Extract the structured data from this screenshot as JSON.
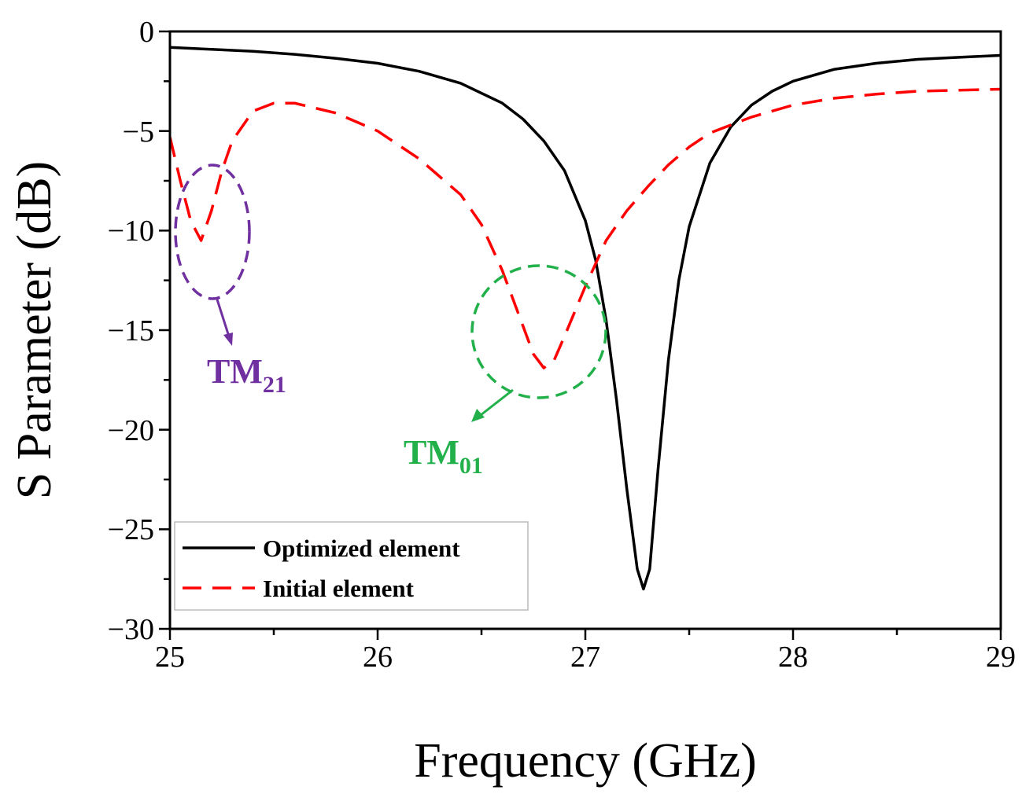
{
  "chart_data": {
    "type": "line",
    "xlabel": "Frequency (GHz)",
    "ylabel": "S Parameter (dB)",
    "xlim": [
      25,
      29
    ],
    "ylim": [
      -30,
      0
    ],
    "x_ticks": [
      25,
      26,
      27,
      28,
      29
    ],
    "y_ticks": [
      0,
      -5,
      -10,
      -15,
      -20,
      -25,
      -30
    ],
    "y_tick_labels": [
      "0",
      "−5",
      "−10",
      "−15",
      "−20",
      "−25",
      "−30"
    ],
    "legend": {
      "position": "bottom-left",
      "entries": [
        "Optimized element",
        "Initial element"
      ]
    },
    "series": [
      {
        "name": "Optimized element",
        "color": "#000000",
        "style": "solid",
        "x": [
          25.0,
          25.2,
          25.4,
          25.6,
          25.8,
          26.0,
          26.2,
          26.4,
          26.6,
          26.7,
          26.8,
          26.9,
          27.0,
          27.05,
          27.1,
          27.15,
          27.2,
          27.25,
          27.28,
          27.31,
          27.35,
          27.4,
          27.45,
          27.5,
          27.6,
          27.7,
          27.8,
          27.9,
          28.0,
          28.2,
          28.4,
          28.6,
          28.8,
          29.0
        ],
        "y": [
          -0.8,
          -0.9,
          -1.0,
          -1.15,
          -1.35,
          -1.6,
          -2.0,
          -2.6,
          -3.6,
          -4.4,
          -5.5,
          -7.0,
          -9.5,
          -11.5,
          -14.5,
          -18.5,
          -23.0,
          -27.0,
          -28.0,
          -27.0,
          -22.0,
          -16.5,
          -12.5,
          -9.8,
          -6.6,
          -4.8,
          -3.7,
          -3.0,
          -2.5,
          -1.9,
          -1.6,
          -1.4,
          -1.3,
          -1.2
        ]
      },
      {
        "name": "Initial element",
        "color": "#ff0000",
        "style": "dashed",
        "x": [
          25.0,
          25.05,
          25.1,
          25.15,
          25.2,
          25.25,
          25.3,
          25.4,
          25.5,
          25.6,
          25.8,
          26.0,
          26.2,
          26.4,
          26.5,
          26.6,
          26.7,
          26.75,
          26.8,
          26.85,
          26.9,
          27.0,
          27.1,
          27.2,
          27.3,
          27.4,
          27.5,
          27.6,
          27.8,
          28.0,
          28.2,
          28.4,
          28.6,
          28.8,
          29.0
        ],
        "y": [
          -5.3,
          -7.5,
          -9.5,
          -10.5,
          -9.0,
          -7.0,
          -5.5,
          -4.0,
          -3.6,
          -3.6,
          -4.1,
          -5.0,
          -6.4,
          -8.2,
          -9.7,
          -12.0,
          -14.8,
          -16.2,
          -16.9,
          -16.5,
          -15.3,
          -12.8,
          -10.5,
          -9.0,
          -7.8,
          -6.7,
          -5.8,
          -5.1,
          -4.3,
          -3.7,
          -3.35,
          -3.15,
          -3.0,
          -2.95,
          -2.9
        ]
      }
    ],
    "annotations": [
      {
        "label": "TM",
        "subscript": "21",
        "color": "#7030a0",
        "target_x": 25.18,
        "target_y": -10
      },
      {
        "label": "TM",
        "subscript": "01",
        "color": "#22b04a",
        "target_x": 26.78,
        "target_y": -15
      }
    ]
  }
}
